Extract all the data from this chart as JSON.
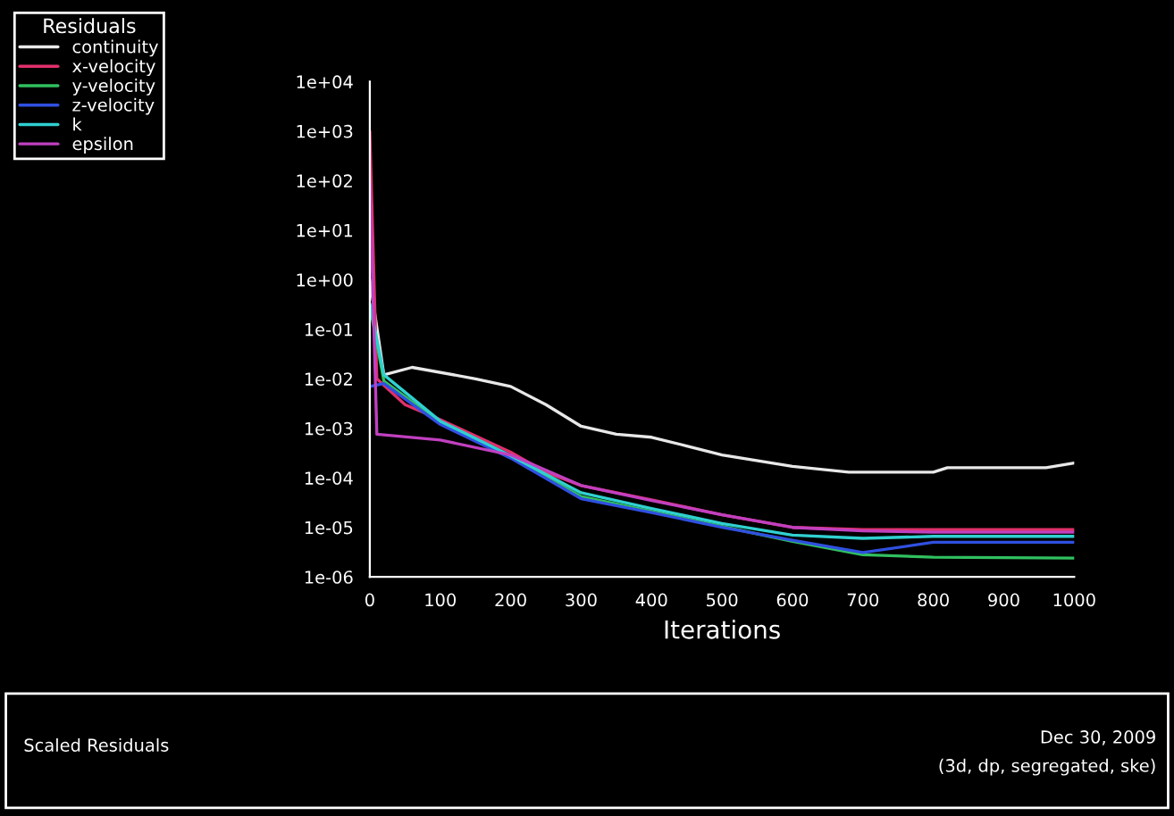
{
  "chart_data": {
    "type": "line",
    "xlabel": "Iterations",
    "legend_title": "Residuals",
    "legend": "top left",
    "log": true,
    "grid": false,
    "marker": "none",
    "line_style": "solid",
    "xlim": [
      0,
      1000
    ],
    "xticks": [
      0,
      100,
      200,
      300,
      400,
      500,
      600,
      700,
      800,
      900,
      1000
    ],
    "ylim": [
      1e-06,
      10000.0
    ],
    "yticks": [
      {
        "value": 10000.0,
        "label": "1e+04"
      },
      {
        "value": 1000.0,
        "label": "1e+03"
      },
      {
        "value": 100.0,
        "label": "1e+02"
      },
      {
        "value": 10,
        "label": "1e+01"
      },
      {
        "value": 1,
        "label": "1e+00"
      },
      {
        "value": 0.1,
        "label": "1e-01"
      },
      {
        "value": 0.01,
        "label": "1e-02"
      },
      {
        "value": 0.001,
        "label": "1e-03"
      },
      {
        "value": 0.0001,
        "label": "1e-04"
      },
      {
        "value": 1e-05,
        "label": "1e-05"
      },
      {
        "value": 1e-06,
        "label": "1e-06"
      }
    ],
    "series": [
      {
        "name": "continuity",
        "color": "#e8e8e8",
        "x": [
          0,
          20,
          60,
          150,
          200,
          250,
          300,
          350,
          400,
          450,
          500,
          600,
          680,
          800,
          820,
          960,
          1000
        ],
        "values": [
          1,
          0.012,
          0.017,
          0.01,
          0.007,
          0.003,
          0.0011,
          0.00076,
          0.00066,
          0.00044,
          0.00029,
          0.00017,
          0.00013,
          0.00013,
          0.00016,
          0.00016,
          0.0002
        ]
      },
      {
        "name": "x-velocity",
        "color": "#e0306a",
        "x": [
          0,
          10,
          50,
          100,
          200,
          250,
          300,
          400,
          500,
          600,
          700,
          800,
          1000
        ],
        "values": [
          1000,
          0.01,
          0.003,
          0.0015,
          0.00033,
          0.00013,
          7e-05,
          3.6e-05,
          1.8e-05,
          1e-05,
          9e-06,
          9e-06,
          9e-06
        ]
      },
      {
        "name": "y-velocity",
        "color": "#30c060",
        "x": [
          0,
          20,
          100,
          200,
          300,
          400,
          500,
          600,
          700,
          800,
          1000
        ],
        "values": [
          0.3,
          0.009,
          0.0013,
          0.00026,
          4.2e-05,
          2.1e-05,
          1.05e-05,
          5.2e-06,
          2.8e-06,
          2.5e-06,
          2.4e-06
        ]
      },
      {
        "name": "z-velocity",
        "color": "#3050e0",
        "x": [
          0,
          20,
          100,
          200,
          300,
          400,
          500,
          600,
          700,
          800,
          1000
        ],
        "values": [
          0.007,
          0.008,
          0.0012,
          0.00025,
          3.8e-05,
          2e-05,
          1e-05,
          5.5e-06,
          3.1e-06,
          5e-06,
          5e-06
        ]
      },
      {
        "name": "k",
        "color": "#30d0d0",
        "x": [
          0,
          20,
          100,
          200,
          300,
          400,
          500,
          600,
          700,
          800,
          1000
        ],
        "values": [
          0.33,
          0.012,
          0.0014,
          0.00028,
          5e-05,
          2.4e-05,
          1.2e-05,
          7e-06,
          6e-06,
          6.6e-06,
          6.6e-06
        ]
      },
      {
        "name": "epsilon",
        "color": "#c040c0",
        "x": [
          0,
          10,
          100,
          200,
          300,
          400,
          500,
          600,
          700,
          800,
          1000
        ],
        "values": [
          100,
          0.00076,
          0.00058,
          0.00029,
          7e-05,
          3.5e-05,
          1.8e-05,
          1e-05,
          8.5e-06,
          8e-06,
          8e-06
        ]
      }
    ],
    "annotations": [
      "Scaled Residuals",
      "Dec 30, 2009",
      "(3d, dp, segregated, ske)"
    ]
  }
}
